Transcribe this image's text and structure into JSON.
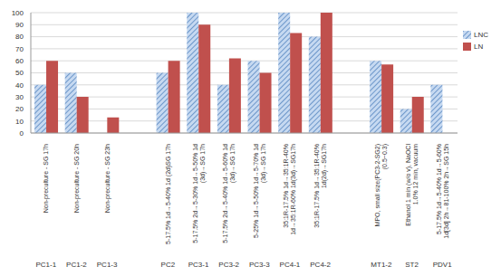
{
  "chart_data": {
    "type": "bar",
    "categories": [
      "PC1-1",
      "PC1-2",
      "PC1-3",
      null,
      "PC2",
      "PC3-1",
      "PC3-2",
      "PC3-3",
      "PC4-1",
      "PC4-2",
      null,
      "MT1-2",
      "ST2",
      "PDV1"
    ],
    "category_descriptions": [
      "Non-preculture - SG 17h",
      "Non-preculture - SG 20h",
      "Non-preculture - SG 23h",
      null,
      "5-17.5% 1d→5-40% 1d (2d)SG 17h",
      "5-17.5% 2d→5-30% 1d→5-50% 1d (3d)→SG 17h",
      "5-17.5% 2d→5-40% 1d→5-60% 1d (3d)→SG 17h",
      "5-25% 1d→5-50% 1d→5-70% 1d (3d)→SG 17h",
      "35:1R-17.5% 1d→35:1R-40% 1d→35:1R-60% 1d(3d)→SG17h",
      "35:1R-17.5% 1d→35:1R-40% 1d(2d)→SG17h",
      null,
      "MPO, small size(PC3-2-SG2) (0.5~0.3)",
      "Ethanol 1 min (w/o v), NaOCl 1.0% 12 min, vacuum",
      "5-17.5% 1d→5-40% 1d→5-60% 1d[3d] 2h→81-100% 2h→SG 15h"
    ],
    "series": [
      {
        "name": "LNC",
        "color": "#4f81bd",
        "values": [
          40,
          50,
          0,
          null,
          50,
          100,
          40,
          60,
          100,
          80,
          null,
          60,
          20,
          40
        ]
      },
      {
        "name": "LN",
        "color": "#c0504d",
        "values": [
          60,
          30,
          13,
          null,
          60,
          90,
          62,
          50,
          83,
          100,
          null,
          57,
          30,
          0
        ]
      }
    ],
    "ylim": [
      0,
      100
    ],
    "yticks": [
      0,
      10,
      20,
      30,
      40,
      50,
      60,
      70,
      80,
      90,
      100
    ],
    "grid": true,
    "legend": "top-right"
  }
}
